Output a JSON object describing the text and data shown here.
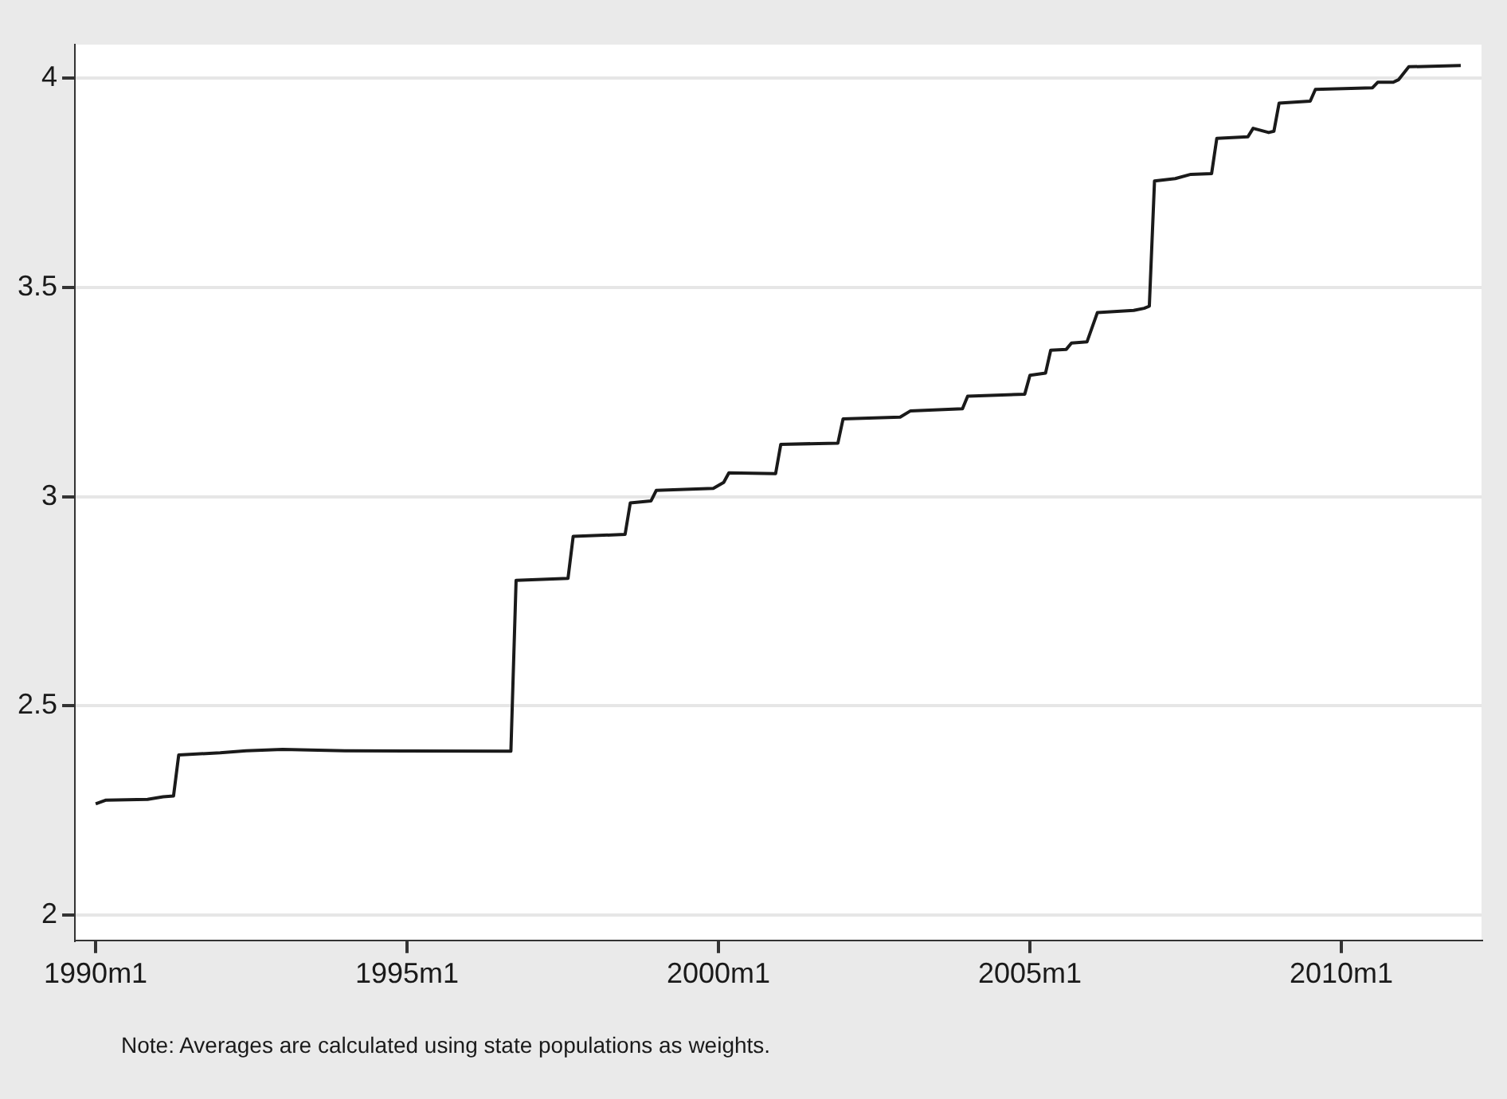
{
  "chart_data": {
    "type": "line",
    "x": [
      "1990-01",
      "1990-03",
      "1990-11",
      "1991-02",
      "1991-04",
      "1991-05",
      "1992-01",
      "1992-06",
      "1993-01",
      "1994-01",
      "1996-09",
      "1996-10",
      "1997-08",
      "1997-09",
      "1998-07",
      "1998-08",
      "1998-12",
      "1999-01",
      "1999-12",
      "2000-02",
      "2000-03",
      "2000-12",
      "2001-01",
      "2001-12",
      "2002-01",
      "2002-12",
      "2003-02",
      "2003-12",
      "2004-01",
      "2004-12",
      "2005-01",
      "2005-04",
      "2005-05",
      "2005-08",
      "2005-09",
      "2005-12",
      "2006-02",
      "2006-09",
      "2006-11",
      "2006-12",
      "2007-01",
      "2007-05",
      "2007-08",
      "2007-12",
      "2008-01",
      "2008-07",
      "2008-08",
      "2008-11",
      "2008-12",
      "2009-01",
      "2009-07",
      "2009-08",
      "2010-07",
      "2010-08",
      "2010-11",
      "2010-12",
      "2011-02",
      "2011-12"
    ],
    "series": [
      {
        "color": "#1a1a1a",
        "values": [
          2.266,
          2.275,
          2.277,
          2.283,
          2.285,
          2.383,
          2.388,
          2.393,
          2.396,
          2.393,
          2.392,
          2.8,
          2.805,
          2.905,
          2.91,
          2.985,
          2.99,
          3.015,
          3.02,
          3.034,
          3.057,
          3.055,
          3.125,
          3.128,
          3.186,
          3.19,
          3.205,
          3.21,
          3.24,
          3.245,
          3.29,
          3.295,
          3.35,
          3.352,
          3.367,
          3.37,
          3.44,
          3.445,
          3.45,
          3.455,
          3.754,
          3.76,
          3.77,
          3.772,
          3.856,
          3.86,
          3.88,
          3.87,
          3.873,
          3.94,
          3.945,
          3.973,
          3.977,
          3.99,
          3.99,
          3.996,
          4.027,
          4.03
        ]
      }
    ],
    "xlim": [
      "1989-09",
      "2012-04"
    ],
    "xticks": [
      {
        "value": "1990-01",
        "label": "1990m1"
      },
      {
        "value": "1995-01",
        "label": "1995m1"
      },
      {
        "value": "2000-01",
        "label": "2000m1"
      },
      {
        "value": "2005-01",
        "label": "2005m1"
      },
      {
        "value": "2010-01",
        "label": "2010m1"
      }
    ],
    "ylim": [
      1.94,
      4.08
    ],
    "yticks": [
      2,
      2.5,
      3,
      3.5,
      4
    ],
    "grid": "y",
    "line_style": "solid",
    "annotations": [
      "Note: Averages are calculated using state populations as weights."
    ]
  }
}
